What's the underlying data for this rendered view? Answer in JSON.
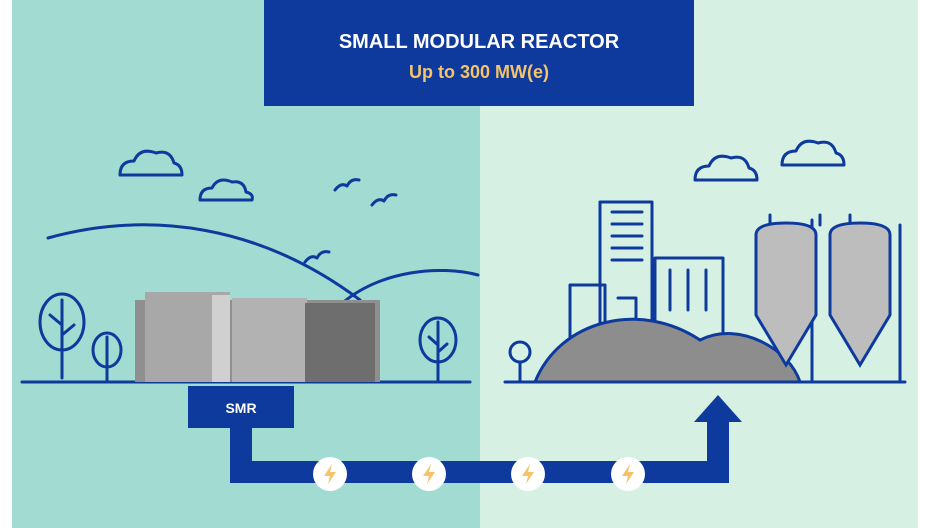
{
  "header": {
    "title": "SMALL MODULAR REACTOR",
    "subtitle": "Up to 300 MW(e)"
  },
  "nodes": [
    {
      "label": "SMR"
    }
  ]
}
